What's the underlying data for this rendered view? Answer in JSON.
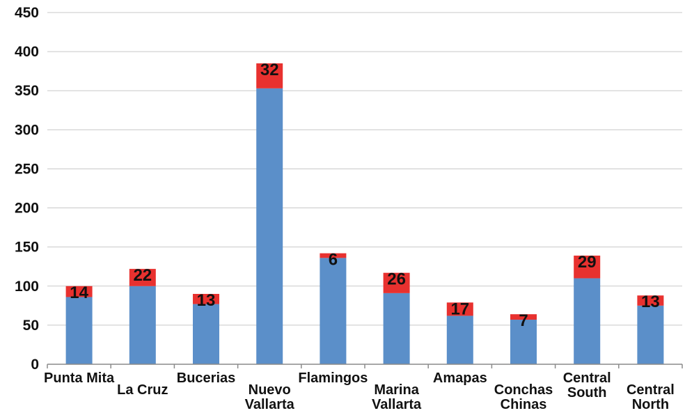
{
  "chart_data": {
    "type": "bar",
    "stacked": true,
    "title": "",
    "xlabel": "",
    "ylabel": "",
    "ylim": [
      0,
      450
    ],
    "yticks": [
      "0",
      "50",
      "100",
      "150",
      "200",
      "250",
      "300",
      "350",
      "400",
      "450"
    ],
    "grid": true,
    "legend": "none",
    "categories": [
      [
        "Punta Mita"
      ],
      [
        "La Cruz"
      ],
      [
        "Bucerias"
      ],
      [
        "Nuevo",
        "Vallarta"
      ],
      [
        "Flamingos"
      ],
      [
        "Marina",
        "Vallarta"
      ],
      [
        "Amapas"
      ],
      [
        "Conchas",
        "Chinas"
      ],
      [
        "Central",
        "South"
      ],
      [
        "Central",
        "North"
      ]
    ],
    "series": [
      {
        "color": "#5b8fc9",
        "values": [
          86,
          100,
          77,
          353,
          136,
          91,
          62,
          57,
          110,
          75
        ]
      },
      {
        "color": "#e8312f",
        "values": [
          14,
          22,
          13,
          32,
          6,
          26,
          17,
          7,
          29,
          13
        ]
      }
    ],
    "data_labels": [
      "14",
      "22",
      "13",
      "32",
      "6",
      "26",
      "17",
      "7",
      "29",
      "13"
    ]
  }
}
